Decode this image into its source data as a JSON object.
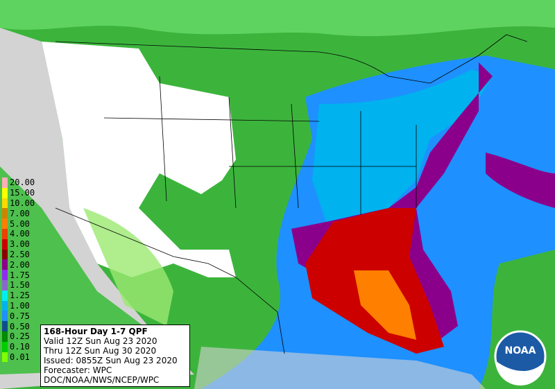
{
  "legend": [
    {
      "label": "20.00",
      "color": "#ffaeb9"
    },
    {
      "label": "15.00",
      "color": "#ffff00"
    },
    {
      "label": "10.00",
      "color": "#ffd700"
    },
    {
      "label": "7.00",
      "color": "#cd8500"
    },
    {
      "label": "5.00",
      "color": "#ff7f00"
    },
    {
      "label": "4.00",
      "color": "#ee4000"
    },
    {
      "label": "3.00",
      "color": "#cd0000"
    },
    {
      "label": "2.50",
      "color": "#8b0000"
    },
    {
      "label": "2.00",
      "color": "#8b008b"
    },
    {
      "label": "1.75",
      "color": "#912cee"
    },
    {
      "label": "1.50",
      "color": "#8968cd"
    },
    {
      "label": "1.25",
      "color": "#00eeee"
    },
    {
      "label": "1.00",
      "color": "#00b2ee"
    },
    {
      "label": "0.75",
      "color": "#1e90ff"
    },
    {
      "label": "0.50",
      "color": "#104e8b"
    },
    {
      "label": "0.25",
      "color": "#008b00"
    },
    {
      "label": "0.10",
      "color": "#00cd00"
    },
    {
      "label": "0.01",
      "color": "#7fff00"
    }
  ],
  "info": {
    "title": "168-Hour Day 1-7 QPF",
    "lines": [
      "Valid 12Z Sun Aug 23 2020",
      "Thru 12Z Sun Aug 30 2020",
      "Issued: 0855Z Sun Aug 23 2020",
      "Forecaster: WPC",
      "DOC/NOAA/NWS/NCEP/WPC"
    ]
  },
  "logo": {
    "text": "NOAA"
  }
}
